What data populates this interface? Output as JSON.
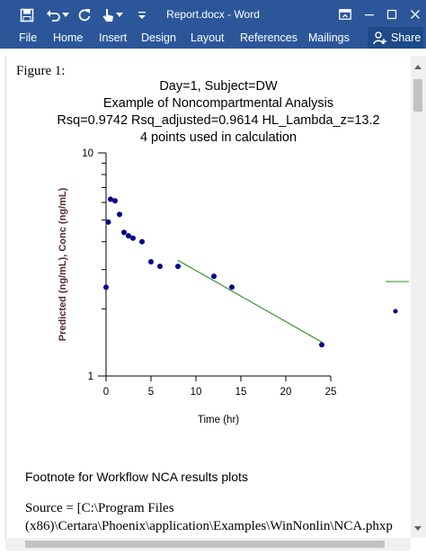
{
  "window": {
    "title": "Report.docx - Word",
    "colors": {
      "titlebar": "#2b579a",
      "text": "#ffffff"
    },
    "quick_access_icons": [
      "save-icon",
      "undo-icon",
      "redo-icon",
      "touch-mode-icon",
      "customize-qat-icon"
    ],
    "controls": [
      "ribbon-display-options-icon",
      "minimize-icon",
      "maximize-icon",
      "close-icon"
    ]
  },
  "ribbon": {
    "tabs": [
      "File",
      "Home",
      "Insert",
      "Design",
      "Layout",
      "References",
      "Mailings"
    ],
    "share_label": "Share"
  },
  "document": {
    "figure_label": "Figure 1:",
    "footnote": "Footnote for Workflow NCA results plots",
    "source_line1": "Source = [C:\\Program Files",
    "source_line2": "(x86)\\Certara\\Phoenix\\application\\Examples\\WinNonlin\\NCA.phxp"
  },
  "chart_data": {
    "type": "scatter",
    "title_lines": [
      "Day=1, Subject=DW",
      "Example of Noncompartmental Analysis",
      "Rsq=0.9742  Rsq_adjusted=0.9614  HL_Lambda_z=13.2",
      "4 points used in calculation"
    ],
    "xlabel": "Time (hr)",
    "ylabel": "Predicted (ng/mL), Conc (ng/mL)",
    "x_ticks": [
      0,
      5,
      10,
      15,
      20,
      25
    ],
    "y_ticks": [
      1,
      10
    ],
    "y_scale": "log",
    "xlim": [
      0,
      25
    ],
    "ylim": [
      1,
      10
    ],
    "grid": false,
    "series": [
      {
        "kind": "points",
        "color": "#00008b",
        "x": [
          0,
          0.25,
          0.5,
          1,
          1.5,
          2,
          2.5,
          3,
          4,
          5,
          6,
          8,
          12,
          14,
          24
        ],
        "y": [
          2.5,
          4.9,
          6.2,
          6.1,
          5.3,
          4.4,
          4.25,
          4.15,
          4.0,
          3.25,
          3.1,
          3.1,
          2.8,
          2.5,
          1.38
        ]
      },
      {
        "kind": "line",
        "color": "#2e8b22",
        "x": [
          8,
          24
        ],
        "y": [
          3.3,
          1.42
        ]
      }
    ],
    "legend": {
      "placement": "right",
      "items": [
        {
          "symbol": "line",
          "color": "#2e8b22"
        },
        {
          "symbol": "point",
          "color": "#00008b"
        }
      ]
    }
  }
}
